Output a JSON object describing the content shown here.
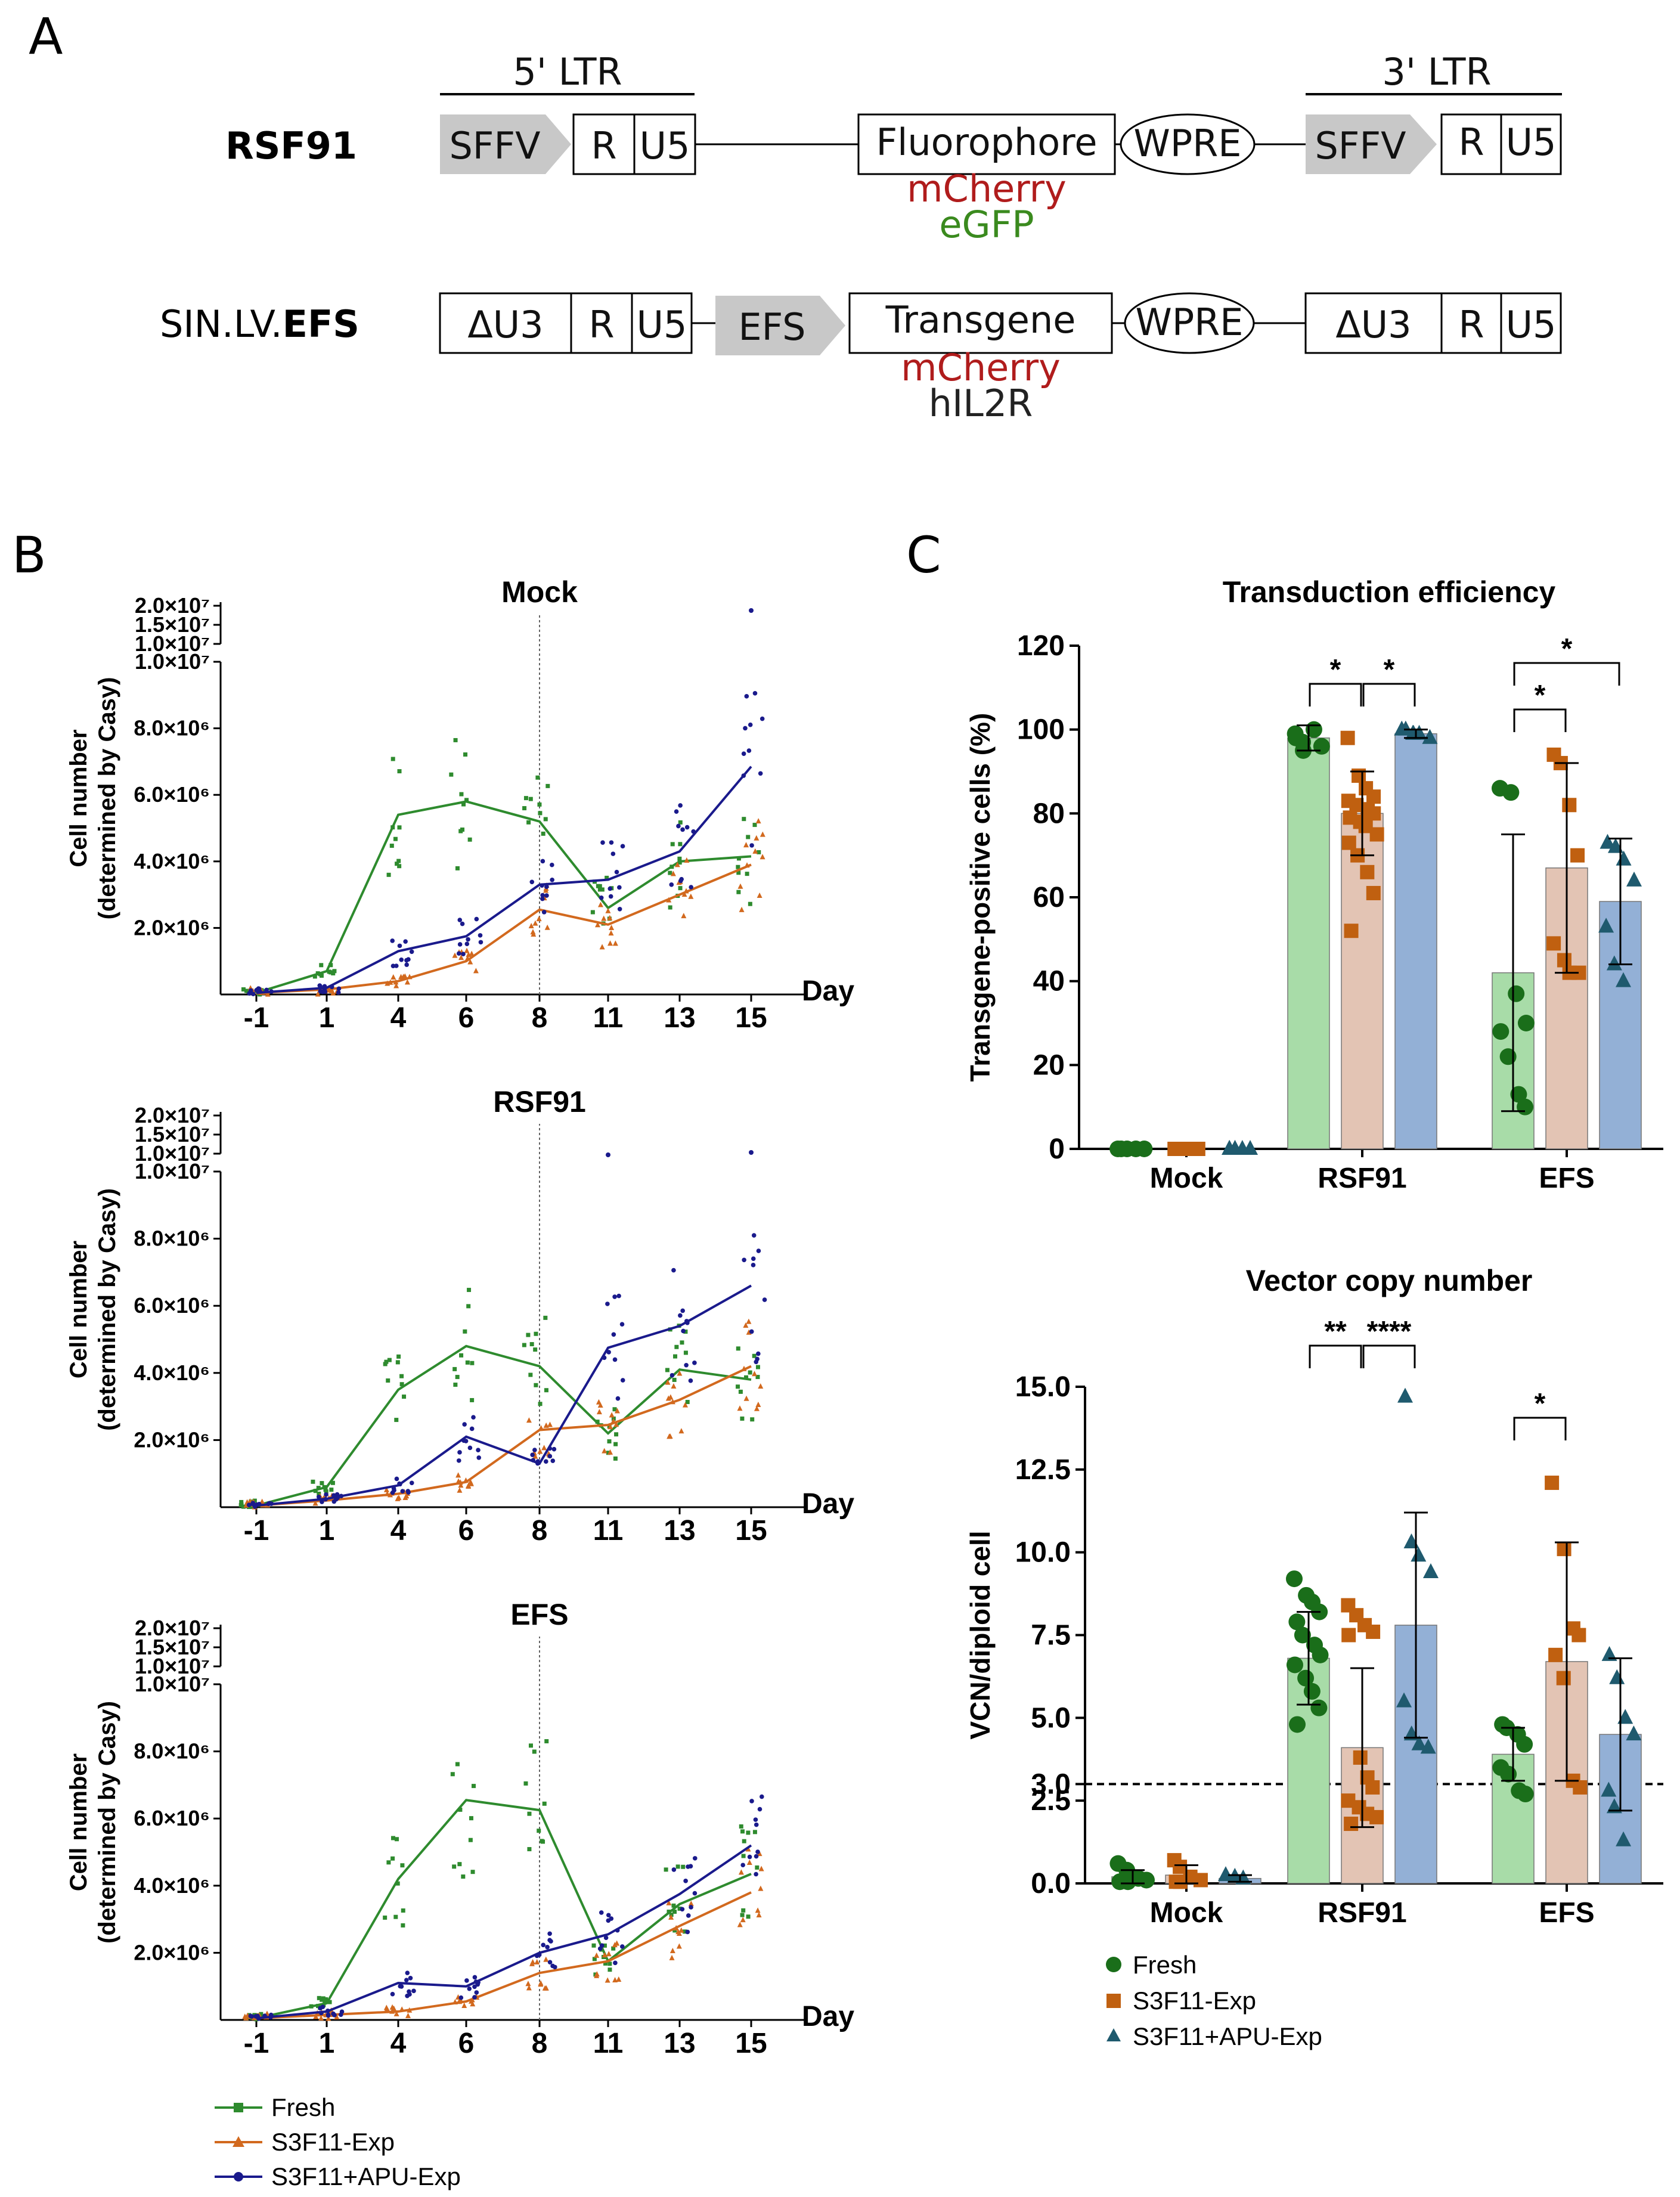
{
  "colors": {
    "fresh": "#2e8b2e",
    "s3f11": "#d2691e",
    "apu": "#1a1a8c",
    "fresh_c": "#1a6e1a",
    "s3f11_c": "#c06010",
    "apu_c": "#1f5a6e",
    "fresh_bar": "#a8dca8",
    "s3f11_bar": "#e3c4b4",
    "apu_bar": "#93b0d6",
    "mcherry": "#b01c1c",
    "egfp": "#3a8a1e",
    "promoter": "#c8c8c8"
  },
  "panel_a": {
    "letter": "A",
    "constructs": [
      {
        "name_plain": "",
        "name_bold": "RSF91",
        "ltr5_label": "5' LTR",
        "ltr3_label": "3' LTR",
        "left_promoter": "SFFV",
        "left_r": "R",
        "left_u5": "U5",
        "insert": "Fluorophore",
        "wpre": "WPRE",
        "right_promoter": "SFFV",
        "right_r": "R",
        "right_u5": "U5",
        "insert_variants": [
          "mCherry",
          "eGFP"
        ]
      },
      {
        "name_plain": "SIN.LV.",
        "name_bold": "EFS",
        "left_u3": "ΔU3",
        "left_r": "R",
        "left_u5": "U5",
        "promoter": "EFS",
        "insert": "Transgene",
        "wpre": "WPRE",
        "right_u3": "ΔU3",
        "right_r": "R",
        "right_u5": "U5",
        "insert_variants": [
          "mCherry",
          "hIL2R"
        ]
      }
    ]
  },
  "panel_b": {
    "letter": "B",
    "legend": [
      "Fresh",
      "S3F11-Exp",
      "S3F11+APU-Exp"
    ],
    "chart_data": [
      {
        "type": "line",
        "title": "Mock",
        "xlabel": "Day",
        "ylabel_line1": "Cell number",
        "ylabel_line2": "(determined by Casy)",
        "x": [
          "-1",
          "1",
          "4",
          "6",
          "8",
          "11",
          "13",
          "15"
        ],
        "yticks_lower": [
          "2.0×10⁶",
          "4.0×10⁶",
          "6.0×10⁶",
          "8.0×10⁶",
          "1.0×10⁷"
        ],
        "yticks_upper": [
          "1.0×10⁷",
          "1.5×10⁷",
          "2.0×10⁷"
        ],
        "ylim": [
          0,
          20000000
        ],
        "axis_break": 10000000,
        "vline_day": "8",
        "series": [
          {
            "name": "Fresh",
            "values": [
              0.05,
              0.7,
              5.4,
              5.8,
              5.2,
              2.6,
              4.0,
              4.15
            ]
          },
          {
            "name": "S3F11-Exp",
            "values": [
              0.05,
              0.15,
              0.4,
              1.0,
              2.55,
              2.1,
              3.0,
              3.9
            ]
          },
          {
            "name": "S3F11+APU-Exp",
            "values": [
              0.05,
              0.2,
              1.3,
              1.75,
              3.3,
              3.45,
              4.3,
              6.85
            ]
          }
        ],
        "value_unit": "×10⁶ cells"
      },
      {
        "type": "line",
        "title": "RSF91",
        "xlabel": "Day",
        "ylabel_line1": "Cell number",
        "ylabel_line2": "(determined by Casy)",
        "x": [
          "-1",
          "1",
          "4",
          "6",
          "8",
          "11",
          "13",
          "15"
        ],
        "yticks_lower": [
          "2.0×10⁶",
          "4.0×10⁶",
          "6.0×10⁶",
          "8.0×10⁶",
          "1.0×10⁷"
        ],
        "yticks_upper": [
          "1.0×10⁷",
          "1.5×10⁷",
          "2.0×10⁷"
        ],
        "ylim": [
          0,
          20000000
        ],
        "axis_break": 10000000,
        "vline_day": "8",
        "series": [
          {
            "name": "Fresh",
            "values": [
              0.05,
              0.6,
              3.5,
              4.8,
              4.2,
              2.2,
              4.1,
              3.8
            ]
          },
          {
            "name": "S3F11-Exp",
            "values": [
              0.05,
              0.2,
              0.4,
              0.75,
              2.3,
              2.45,
              3.2,
              4.2
            ]
          },
          {
            "name": "S3F11+APU-Exp",
            "values": [
              0.05,
              0.25,
              0.65,
              2.1,
              1.3,
              4.75,
              5.4,
              6.6
            ]
          }
        ],
        "value_unit": "×10⁶ cells"
      },
      {
        "type": "line",
        "title": "EFS",
        "xlabel": "Day",
        "ylabel_line1": "Cell number",
        "ylabel_line2": "(determined by Casy)",
        "x": [
          "-1",
          "1",
          "4",
          "6",
          "8",
          "11",
          "13",
          "15"
        ],
        "yticks_lower": [
          "2.0×10⁶",
          "4.0×10⁶",
          "6.0×10⁶",
          "8.0×10⁶",
          "1.0×10⁷"
        ],
        "yticks_upper": [
          "1.0×10⁷",
          "1.5×10⁷",
          "2.0×10⁷"
        ],
        "ylim": [
          0,
          20000000
        ],
        "axis_break": 10000000,
        "vline_day": "8",
        "series": [
          {
            "name": "Fresh",
            "values": [
              0.05,
              0.5,
              4.2,
              6.55,
              6.25,
              1.75,
              3.45,
              4.35
            ]
          },
          {
            "name": "S3F11-Exp",
            "values": [
              0.05,
              0.15,
              0.25,
              0.55,
              1.4,
              1.75,
              2.8,
              3.8
            ]
          },
          {
            "name": "S3F11+APU-Exp",
            "values": [
              0.05,
              0.25,
              1.1,
              1.0,
              2.0,
              2.55,
              3.75,
              5.2
            ]
          }
        ],
        "value_unit": "×10⁶ cells"
      }
    ]
  },
  "panel_c": {
    "letter": "C",
    "legend": [
      "Fresh",
      "S3F11-Exp",
      "S3F11+APU-Exp"
    ],
    "chart_data": [
      {
        "type": "bar",
        "title": "Transduction efficiency",
        "ylabel": "Transgene-positive cells (%)",
        "categories": [
          "Mock",
          "RSF91",
          "EFS"
        ],
        "yticks": [
          "0",
          "20",
          "40",
          "60",
          "80",
          "100",
          "120"
        ],
        "ylim": [
          0,
          120
        ],
        "series": [
          {
            "name": "Fresh",
            "values": [
              0,
              98,
              42
            ],
            "sd": [
              0,
              3,
              33
            ],
            "points": [
              [
                0,
                0,
                0,
                0,
                0
              ],
              [
                99,
                97,
                100,
                96,
                98,
                95
              ],
              [
                86,
                85,
                37,
                30,
                28,
                22,
                13,
                10
              ]
            ]
          },
          {
            "name": "S3F11-Exp",
            "values": [
              0,
              80,
              67
            ],
            "sd": [
              0,
              10,
              25
            ],
            "points": [
              [
                0,
                0,
                0,
                0,
                0
              ],
              [
                98,
                89,
                86,
                84,
                83,
                82,
                81,
                80,
                79,
                78,
                77,
                75,
                73,
                70,
                66,
                61,
                52
              ],
              [
                94,
                92,
                82,
                70,
                49,
                45,
                42,
                42
              ]
            ]
          },
          {
            "name": "S3F11+APU-Exp",
            "values": [
              0,
              99,
              59
            ],
            "sd": [
              0,
              1,
              15
            ],
            "points": [
              [
                0,
                0,
                0,
                0,
                0,
                0
              ],
              [
                100,
                99,
                99,
                98,
                100,
                99
              ],
              [
                73,
                72,
                69,
                64,
                53,
                44,
                40
              ]
            ]
          }
        ],
        "significance": [
          {
            "from": "RSF91 Fresh",
            "to": "RSF91 S3F11-Exp",
            "label": "*"
          },
          {
            "from": "RSF91 S3F11-Exp",
            "to": "RSF91 S3F11+APU-Exp",
            "label": "*"
          },
          {
            "from": "EFS Fresh",
            "to": "EFS S3F11-Exp",
            "label": "*"
          },
          {
            "from": "EFS Fresh",
            "to": "EFS S3F11+APU-Exp",
            "label": "*"
          }
        ]
      },
      {
        "type": "bar",
        "title": "Vector copy number",
        "ylabel": "VCN/diploid cell",
        "categories": [
          "Mock",
          "RSF91",
          "EFS"
        ],
        "yticks": [
          "0.0",
          "2.5",
          "3.0",
          "5.0",
          "7.5",
          "10.0",
          "12.5",
          "15.0"
        ],
        "ylim": [
          0,
          15
        ],
        "threshold": 3,
        "series": [
          {
            "name": "Fresh",
            "values": [
              0.2,
              6.8,
              3.9
            ],
            "sd": [
              0.2,
              1.4,
              0.8
            ],
            "points": [
              [
                0.6,
                0.4,
                0.15,
                0.1,
                0.05,
                0.05
              ],
              [
                9.2,
                8.7,
                8.5,
                8.2,
                7.9,
                7.5,
                7.2,
                6.9,
                6.6,
                6.2,
                5.8,
                5.3,
                4.8
              ],
              [
                4.8,
                4.7,
                4.5,
                4.2,
                3.5,
                3.3,
                2.8,
                2.7
              ]
            ]
          },
          {
            "name": "S3F11-Exp",
            "values": [
              0.25,
              4.1,
              6.7
            ],
            "sd": [
              0.3,
              2.4,
              3.6
            ],
            "points": [
              [
                0.7,
                0.5,
                0.2,
                0.1,
                0.05,
                0.05
              ],
              [
                8.4,
                8.1,
                7.8,
                7.6,
                7.5,
                3.8,
                3.2,
                2.9,
                2.5,
                2.3,
                2.1,
                2.0,
                1.8
              ],
              [
                12.1,
                10.1,
                7.7,
                7.5,
                6.9,
                6.2,
                3.1,
                2.9
              ]
            ]
          },
          {
            "name": "S3F11+APU-Exp",
            "values": [
              0.15,
              7.8,
              4.5
            ],
            "sd": [
              0.1,
              3.4,
              2.3
            ],
            "points": [
              [
                0.25,
                0.2,
                0.15
              ],
              [
                14.7,
                10.3,
                9.9,
                9.4,
                5.5,
                4.5,
                4.2,
                4.1
              ],
              [
                6.9,
                6.2,
                5.0,
                4.5,
                2.8,
                2.3,
                1.3
              ]
            ]
          }
        ],
        "significance": [
          {
            "from": "RSF91 Fresh",
            "to": "RSF91 S3F11-Exp",
            "label": "**"
          },
          {
            "from": "RSF91 S3F11-Exp",
            "to": "RSF91 S3F11+APU-Exp",
            "label": "****"
          },
          {
            "from": "EFS Fresh",
            "to": "EFS S3F11-Exp",
            "label": "*"
          }
        ]
      }
    ]
  }
}
